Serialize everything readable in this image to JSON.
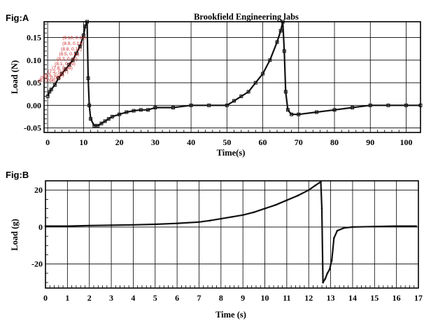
{
  "chart_data": [
    {
      "id": "A",
      "panel_label": "Fig:A",
      "type": "line",
      "title": "Brookfield Engineering labs",
      "xlabel": "Time(s)",
      "ylabel": "Load (N)",
      "xlim": [
        -1,
        104
      ],
      "ylim": [
        -0.06,
        0.185
      ],
      "xticks": [
        0,
        10,
        20,
        30,
        40,
        50,
        60,
        70,
        80,
        90,
        100
      ],
      "yticks": [
        -0.05,
        0.0,
        0.05,
        0.1,
        0.15
      ],
      "ytick_labels": [
        "-0.05",
        "0.00",
        "0.05",
        "0.10",
        "0.15"
      ],
      "grid": true,
      "colors": {
        "line": "#111111",
        "grid": "#000000",
        "annotation": "#cc2222"
      },
      "annotations": [
        "(9.10, 0.14)",
        "(8.9, 0.13)",
        "(8.8, 0.12)",
        "(8.5, 0.11)",
        "(8.3, 0.10)",
        "(8.1, 0.09)",
        "(7.8, 0.08)",
        "(7.2, 0.07)",
        "(6.5, 0.06)",
        "(5.8, 0.05)",
        "(5, 0.04)"
      ],
      "series": [
        {
          "x": [
            0,
            0.5,
            1,
            2,
            3,
            4,
            5,
            6,
            7,
            8,
            9,
            10,
            10.5,
            11,
            11.3,
            11.6,
            12,
            13,
            14,
            15,
            16,
            17,
            18,
            20,
            22,
            24,
            26,
            28,
            30,
            35,
            40,
            45,
            50,
            52,
            54,
            56,
            58,
            60,
            62,
            64,
            65,
            65.6,
            66,
            66.4,
            67,
            68,
            70,
            75,
            80,
            85,
            90,
            95,
            100,
            104
          ],
          "y": [
            0.02,
            0.03,
            0.035,
            0.045,
            0.06,
            0.07,
            0.08,
            0.09,
            0.1,
            0.115,
            0.13,
            0.155,
            0.175,
            0.185,
            0.06,
            0.0,
            -0.03,
            -0.045,
            -0.045,
            -0.04,
            -0.035,
            -0.03,
            -0.025,
            -0.02,
            -0.015,
            -0.012,
            -0.01,
            -0.01,
            -0.005,
            -0.005,
            0.0,
            0.0,
            0.0,
            0.01,
            0.02,
            0.03,
            0.05,
            0.07,
            0.1,
            0.14,
            0.165,
            0.185,
            0.12,
            0.03,
            -0.01,
            -0.02,
            -0.02,
            -0.015,
            -0.01,
            -0.005,
            0.0,
            0.0,
            0.0,
            0.0
          ]
        }
      ]
    },
    {
      "id": "B",
      "panel_label": "Fig:B",
      "type": "line",
      "title": "",
      "xlabel": "Time (s)",
      "ylabel": "Load (g)",
      "xlim": [
        0,
        17
      ],
      "ylim": [
        -33,
        25
      ],
      "xticks": [
        0,
        1,
        2,
        3,
        4,
        5,
        6,
        7,
        8,
        9,
        10,
        11,
        12,
        13,
        14,
        15,
        16,
        17
      ],
      "yticks": [
        -20,
        0,
        20
      ],
      "ytick_labels": [
        "-20",
        "0",
        "20"
      ],
      "grid": true,
      "colors": {
        "line": "#111111",
        "grid": "#000000"
      },
      "series": [
        {
          "x": [
            0,
            1,
            2,
            3,
            4,
            5,
            6,
            7,
            7.5,
            8,
            8.5,
            9,
            9.5,
            10,
            10.5,
            11,
            11.5,
            12,
            12.3,
            12.55,
            12.6,
            12.65,
            12.75,
            12.85,
            12.95,
            13.05,
            13.15,
            13.3,
            13.6,
            14,
            15,
            16,
            16.9
          ],
          "y": [
            0.5,
            0.5,
            0.8,
            1,
            1.2,
            1.5,
            2,
            2.7,
            3.5,
            4.5,
            5.5,
            6.5,
            8,
            10,
            12,
            14.5,
            17,
            20,
            22.5,
            24.5,
            10,
            -30,
            -28,
            -25,
            -23,
            -18,
            -6,
            -2,
            -0.5,
            0,
            0.3,
            0.5,
            0.5
          ]
        }
      ]
    }
  ]
}
